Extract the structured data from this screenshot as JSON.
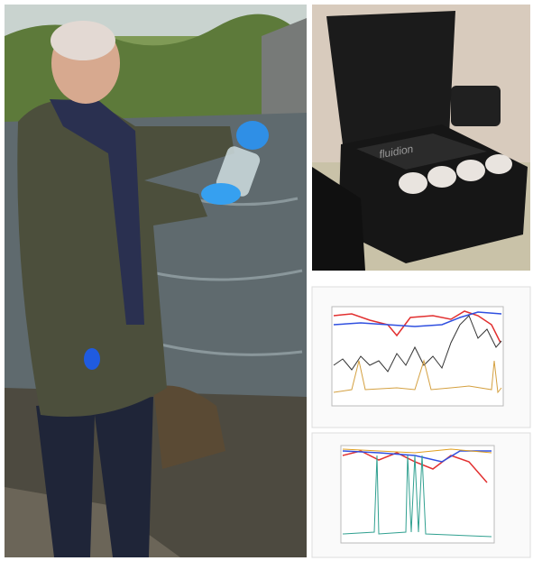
{
  "case_photo": {
    "brand_label": "fluidion"
  }
}
